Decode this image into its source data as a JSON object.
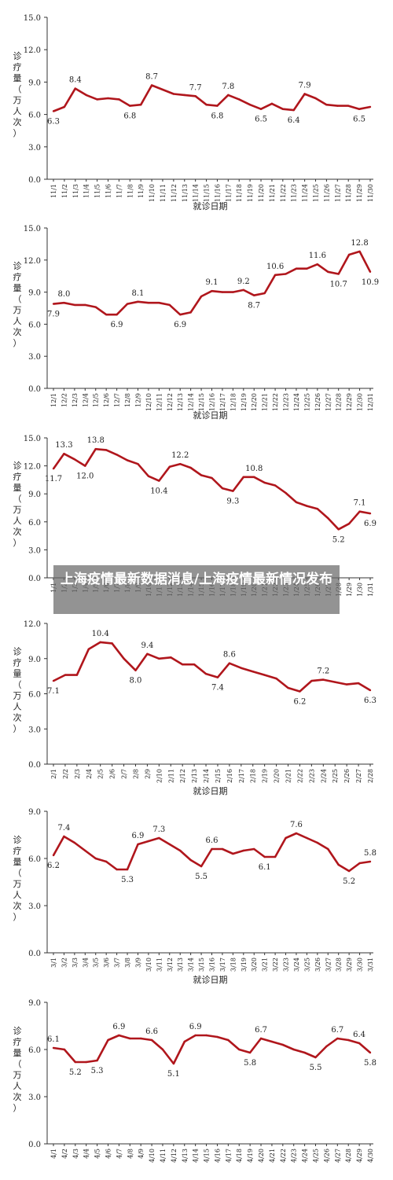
{
  "overlay": {
    "title": "上海疫情最新数据消息/上海疫情最新情况发布"
  },
  "colors": {
    "line": "#b0161c",
    "axis": "#333333",
    "text": "#222222"
  },
  "chart_data": [
    {
      "type": "line",
      "ylabel": "诊疗量（万人次）",
      "xlabel": "就诊日期",
      "ylim": [
        0,
        15
      ],
      "yticks": [
        "0.0",
        "3.0",
        "6.0",
        "9.0",
        "12.0",
        "15.0"
      ],
      "grid": false,
      "categories": [
        "11/1",
        "11/2",
        "11/3",
        "11/4",
        "11/5",
        "11/6",
        "11/7",
        "11/8",
        "11/9",
        "11/10",
        "11/11",
        "11/12",
        "11/13",
        "11/14",
        "11/15",
        "11/16",
        "11/17",
        "11/18",
        "11/19",
        "11/20",
        "11/21",
        "11/22",
        "11/23",
        "11/24",
        "11/25",
        "11/26",
        "11/27",
        "11/28",
        "11/29",
        "11/30"
      ],
      "values": [
        6.3,
        6.7,
        8.4,
        7.8,
        7.4,
        7.5,
        7.4,
        6.8,
        6.9,
        8.7,
        8.3,
        7.9,
        7.8,
        7.7,
        6.9,
        6.8,
        7.8,
        7.4,
        6.9,
        6.5,
        7.0,
        6.5,
        6.4,
        7.9,
        7.5,
        6.9,
        6.8,
        6.8,
        6.5,
        6.7
      ],
      "data_labels": [
        {
          "i": 0,
          "text": "6.3",
          "pos": "below"
        },
        {
          "i": 2,
          "text": "8.4",
          "pos": "above"
        },
        {
          "i": 7,
          "text": "6.8",
          "pos": "below"
        },
        {
          "i": 9,
          "text": "8.7",
          "pos": "above"
        },
        {
          "i": 13,
          "text": "7.7",
          "pos": "above"
        },
        {
          "i": 15,
          "text": "6.8",
          "pos": "below"
        },
        {
          "i": 16,
          "text": "7.8",
          "pos": "above"
        },
        {
          "i": 19,
          "text": "6.5",
          "pos": "below"
        },
        {
          "i": 22,
          "text": "6.4",
          "pos": "below"
        },
        {
          "i": 23,
          "text": "7.9",
          "pos": "above"
        },
        {
          "i": 28,
          "text": "6.5",
          "pos": "below"
        }
      ]
    },
    {
      "type": "line",
      "ylabel": "诊疗量（万人次）",
      "xlabel": "就诊日期",
      "ylim": [
        0,
        15
      ],
      "yticks": [
        "0.0",
        "3.0",
        "6.0",
        "9.0",
        "12.0",
        "15.0"
      ],
      "grid": false,
      "categories": [
        "12/1",
        "12/2",
        "12/3",
        "12/4",
        "12/5",
        "12/6",
        "12/7",
        "12/8",
        "12/9",
        "12/10",
        "12/11",
        "12/12",
        "12/13",
        "12/14",
        "12/15",
        "12/16",
        "12/17",
        "12/18",
        "12/19",
        "12/20",
        "12/21",
        "12/22",
        "12/23",
        "12/24",
        "12/25",
        "12/26",
        "12/27",
        "12/28",
        "12/29",
        "12/30",
        "12/31"
      ],
      "values": [
        7.9,
        8.0,
        7.8,
        7.8,
        7.6,
        6.9,
        6.9,
        7.9,
        8.1,
        8.0,
        8.0,
        7.8,
        6.9,
        7.1,
        8.6,
        9.1,
        9.0,
        9.0,
        9.2,
        8.7,
        8.9,
        10.6,
        10.7,
        11.2,
        11.2,
        11.6,
        10.9,
        10.7,
        12.5,
        12.8,
        10.9
      ],
      "data_labels": [
        {
          "i": 0,
          "text": "7.9",
          "pos": "below"
        },
        {
          "i": 1,
          "text": "8.0",
          "pos": "above"
        },
        {
          "i": 6,
          "text": "6.9",
          "pos": "below"
        },
        {
          "i": 8,
          "text": "8.1",
          "pos": "above"
        },
        {
          "i": 12,
          "text": "6.9",
          "pos": "below"
        },
        {
          "i": 15,
          "text": "9.1",
          "pos": "above"
        },
        {
          "i": 18,
          "text": "9.2",
          "pos": "above"
        },
        {
          "i": 19,
          "text": "8.7",
          "pos": "below"
        },
        {
          "i": 21,
          "text": "10.6",
          "pos": "above"
        },
        {
          "i": 25,
          "text": "11.6",
          "pos": "above"
        },
        {
          "i": 27,
          "text": "10.7",
          "pos": "below"
        },
        {
          "i": 29,
          "text": "12.8",
          "pos": "above"
        },
        {
          "i": 30,
          "text": "10.9",
          "pos": "below"
        }
      ]
    },
    {
      "type": "line",
      "ylabel": "诊疗量（万人次）",
      "xlabel": "",
      "ylim": [
        0,
        15
      ],
      "yticks": [
        "0.0",
        "3.0",
        "6.0",
        "9.0",
        "12.0",
        "15.0"
      ],
      "grid": false,
      "categories": [
        "1/1",
        "1/2",
        "1/3",
        "1/4",
        "1/5",
        "1/6",
        "1/7",
        "1/8",
        "1/9",
        "1/10",
        "1/11",
        "1/12",
        "1/13",
        "1/14",
        "1/15",
        "1/16",
        "1/17",
        "1/18",
        "1/19",
        "1/20",
        "1/21",
        "1/22",
        "1/23",
        "1/24",
        "1/25",
        "1/26",
        "1/27",
        "1/28",
        "1/29",
        "1/30",
        "1/31"
      ],
      "values": [
        11.7,
        13.3,
        12.7,
        12.0,
        13.8,
        13.7,
        13.2,
        12.6,
        12.2,
        10.9,
        10.4,
        11.9,
        12.2,
        11.8,
        11.0,
        10.7,
        9.6,
        9.3,
        10.8,
        10.8,
        10.2,
        9.9,
        9.1,
        8.1,
        7.7,
        7.4,
        6.4,
        5.2,
        5.8,
        7.1,
        6.9
      ],
      "data_labels": [
        {
          "i": 0,
          "text": "11.7",
          "pos": "below"
        },
        {
          "i": 1,
          "text": "13.3",
          "pos": "above"
        },
        {
          "i": 3,
          "text": "12.0",
          "pos": "below"
        },
        {
          "i": 4,
          "text": "13.8",
          "pos": "above"
        },
        {
          "i": 10,
          "text": "10.4",
          "pos": "below"
        },
        {
          "i": 12,
          "text": "12.2",
          "pos": "above"
        },
        {
          "i": 17,
          "text": "9.3",
          "pos": "below"
        },
        {
          "i": 19,
          "text": "10.8",
          "pos": "above"
        },
        {
          "i": 27,
          "text": "5.2",
          "pos": "below"
        },
        {
          "i": 29,
          "text": "7.1",
          "pos": "above"
        },
        {
          "i": 30,
          "text": "6.9",
          "pos": "below"
        }
      ]
    },
    {
      "type": "line",
      "ylabel": "诊疗量（万人次）",
      "xlabel": "就诊日期",
      "ylim": [
        0,
        12
      ],
      "yticks": [
        "0.0",
        "3.0",
        "6.0",
        "9.0",
        "12.0"
      ],
      "grid": false,
      "categories": [
        "2/1",
        "2/2",
        "2/3",
        "2/4",
        "2/5",
        "2/6",
        "2/7",
        "2/8",
        "2/9",
        "2/10",
        "2/11",
        "2/12",
        "2/13",
        "2/14",
        "2/15",
        "2/16",
        "2/17",
        "2/18",
        "2/19",
        "2/20",
        "2/21",
        "2/22",
        "2/23",
        "2/24",
        "2/25",
        "2/26",
        "2/27",
        "2/28"
      ],
      "values": [
        7.1,
        7.6,
        7.6,
        9.8,
        10.4,
        10.3,
        9.0,
        8.0,
        9.4,
        9.0,
        9.1,
        8.5,
        8.5,
        7.7,
        7.4,
        8.6,
        8.2,
        7.9,
        7.6,
        7.3,
        6.5,
        6.2,
        7.1,
        7.2,
        7.0,
        6.8,
        6.9,
        6.3
      ],
      "data_labels": [
        {
          "i": 0,
          "text": "7.1",
          "pos": "below"
        },
        {
          "i": 4,
          "text": "10.4",
          "pos": "above"
        },
        {
          "i": 7,
          "text": "8.0",
          "pos": "below"
        },
        {
          "i": 8,
          "text": "9.4",
          "pos": "above"
        },
        {
          "i": 14,
          "text": "7.4",
          "pos": "below"
        },
        {
          "i": 15,
          "text": "8.6",
          "pos": "above"
        },
        {
          "i": 21,
          "text": "6.2",
          "pos": "below"
        },
        {
          "i": 23,
          "text": "7.2",
          "pos": "above"
        },
        {
          "i": 27,
          "text": "6.3",
          "pos": "below"
        }
      ]
    },
    {
      "type": "line",
      "ylabel": "诊疗量（万人次）",
      "xlabel": "就诊日期",
      "ylim": [
        0,
        9
      ],
      "yticks": [
        "0.0",
        "3.0",
        "6.0",
        "9.0"
      ],
      "grid": false,
      "categories": [
        "3/1",
        "3/2",
        "3/3",
        "3/4",
        "3/5",
        "3/6",
        "3/7",
        "3/8",
        "3/9",
        "3/10",
        "3/11",
        "3/12",
        "3/13",
        "3/14",
        "3/15",
        "3/16",
        "3/17",
        "3/18",
        "3/19",
        "3/20",
        "3/21",
        "3/22",
        "3/23",
        "3/24",
        "3/25",
        "3/26",
        "3/27",
        "3/28",
        "3/29",
        "3/30",
        "3/31"
      ],
      "values": [
        6.2,
        7.4,
        7.0,
        6.5,
        6.0,
        5.8,
        5.3,
        5.3,
        6.9,
        7.1,
        7.3,
        6.9,
        6.5,
        5.9,
        5.5,
        6.6,
        6.6,
        6.3,
        6.5,
        6.6,
        6.1,
        6.1,
        7.3,
        7.6,
        7.3,
        7.0,
        6.6,
        5.6,
        5.2,
        5.7,
        5.8
      ],
      "data_labels": [
        {
          "i": 0,
          "text": "6.2",
          "pos": "below"
        },
        {
          "i": 1,
          "text": "7.4",
          "pos": "above"
        },
        {
          "i": 7,
          "text": "5.3",
          "pos": "below"
        },
        {
          "i": 8,
          "text": "6.9",
          "pos": "above"
        },
        {
          "i": 10,
          "text": "7.3",
          "pos": "above"
        },
        {
          "i": 14,
          "text": "5.5",
          "pos": "below"
        },
        {
          "i": 15,
          "text": "6.6",
          "pos": "above"
        },
        {
          "i": 20,
          "text": "6.1",
          "pos": "below"
        },
        {
          "i": 23,
          "text": "7.6",
          "pos": "above"
        },
        {
          "i": 28,
          "text": "5.2",
          "pos": "below"
        },
        {
          "i": 30,
          "text": "5.8",
          "pos": "above"
        }
      ]
    },
    {
      "type": "line",
      "ylabel": "诊疗量（万人次）",
      "xlabel": "",
      "ylim": [
        0,
        9
      ],
      "yticks": [
        "0.0",
        "3.0",
        "6.0",
        "9.0"
      ],
      "grid": false,
      "categories": [
        "4/1",
        "4/2",
        "4/3",
        "4/4",
        "4/5",
        "4/6",
        "4/7",
        "4/8",
        "4/9",
        "4/10",
        "4/11",
        "4/12",
        "4/13",
        "4/14",
        "4/15",
        "4/16",
        "4/17",
        "4/18",
        "4/19",
        "4/20",
        "4/21",
        "4/22",
        "4/23",
        "4/24",
        "4/25",
        "4/26",
        "4/27",
        "4/28",
        "4/29",
        "4/30"
      ],
      "values": [
        6.1,
        6.0,
        5.2,
        5.2,
        5.3,
        6.6,
        6.9,
        6.7,
        6.7,
        6.6,
        6.0,
        5.1,
        6.5,
        6.9,
        6.9,
        6.8,
        6.6,
        6.0,
        5.8,
        6.7,
        6.5,
        6.3,
        6.0,
        5.8,
        5.5,
        6.2,
        6.7,
        6.6,
        6.4,
        5.8
      ],
      "data_labels": [
        {
          "i": 0,
          "text": "6.1",
          "pos": "above"
        },
        {
          "i": 2,
          "text": "5.2",
          "pos": "below"
        },
        {
          "i": 4,
          "text": "5.3",
          "pos": "below"
        },
        {
          "i": 6,
          "text": "6.9",
          "pos": "above"
        },
        {
          "i": 9,
          "text": "6.6",
          "pos": "above"
        },
        {
          "i": 11,
          "text": "5.1",
          "pos": "below"
        },
        {
          "i": 13,
          "text": "6.9",
          "pos": "above"
        },
        {
          "i": 18,
          "text": "5.8",
          "pos": "below"
        },
        {
          "i": 19,
          "text": "6.7",
          "pos": "above"
        },
        {
          "i": 24,
          "text": "5.5",
          "pos": "below"
        },
        {
          "i": 26,
          "text": "6.7",
          "pos": "above"
        },
        {
          "i": 28,
          "text": "6.4",
          "pos": "above"
        },
        {
          "i": 29,
          "text": "5.8",
          "pos": "below"
        }
      ]
    }
  ]
}
